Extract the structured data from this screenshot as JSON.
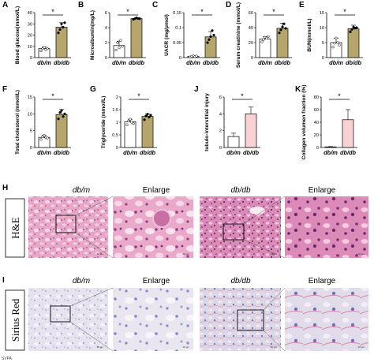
{
  "chart_data": [
    {
      "type": "bar",
      "panel": "A",
      "ylabel": "Blood glucose(mmol/L)",
      "categories": [
        "db/m",
        "db/db"
      ],
      "values": [
        8,
        27
      ],
      "errors": [
        1.5,
        4
      ],
      "ylim": [
        0,
        40
      ],
      "yticks": [
        0,
        10,
        20,
        30,
        40
      ],
      "significance": "*",
      "points": [
        [
          6,
          8,
          9,
          7,
          8
        ],
        [
          22,
          25,
          30,
          27,
          31
        ]
      ]
    },
    {
      "type": "bar",
      "panel": "B",
      "ylabel": "Microalbumin(mg/L)",
      "categories": [
        "db/m",
        "db/db"
      ],
      "values": [
        1.6,
        5.2
      ],
      "errors": [
        0.6,
        0.1
      ],
      "ylim": [
        0,
        6
      ],
      "yticks": [
        0,
        2,
        4,
        6
      ],
      "significance": "*",
      "points": [
        [
          1,
          2,
          1.3,
          2.3,
          1.5
        ],
        [
          5.1,
          5.2,
          5.3,
          5.2,
          5.2
        ]
      ]
    },
    {
      "type": "bar",
      "panel": "C",
      "ylabel": "UACR (mg/μmol)",
      "categories": [
        "db/m",
        "db/db"
      ],
      "values": [
        0.004,
        0.069
      ],
      "errors": [
        0.002,
        0.018
      ],
      "ylim": [
        0,
        0.15
      ],
      "yticks": [
        0,
        0.05,
        0.1,
        0.15
      ],
      "significance": "*",
      "points": [
        [
          0.002,
          0.004,
          0.006,
          0.003,
          0.005
        ],
        [
          0.05,
          0.06,
          0.07,
          0.09,
          0.075
        ]
      ]
    },
    {
      "type": "bar",
      "panel": "D",
      "ylabel": "Serum creatinine (mmol/L)",
      "categories": [
        "db/m",
        "db/db"
      ],
      "values": [
        25,
        39
      ],
      "errors": [
        3,
        7
      ],
      "ylim": [
        0,
        60
      ],
      "yticks": [
        0,
        20,
        40,
        60
      ],
      "significance": "*",
      "points": [
        [
          21,
          24,
          27,
          26,
          28
        ],
        [
          33,
          37,
          41,
          45,
          39
        ]
      ]
    },
    {
      "type": "bar",
      "panel": "E",
      "ylabel": "BUN(mmol/L)",
      "categories": [
        "db/m",
        "db/db"
      ],
      "values": [
        5,
        9.6
      ],
      "errors": [
        1.5,
        1.2
      ],
      "ylim": [
        0,
        15
      ],
      "yticks": [
        0,
        5,
        10,
        15
      ],
      "significance": "*",
      "points": [
        [
          3.5,
          4.8,
          6.5,
          5,
          4.2
        ],
        [
          8.6,
          9.4,
          10.2,
          9.8,
          10
        ]
      ]
    },
    {
      "type": "bar",
      "panel": "F",
      "ylabel": "Total cholesterol (mmol/L)",
      "categories": [
        "db/m",
        "db/db"
      ],
      "values": [
        3,
        9.8
      ],
      "errors": [
        0.6,
        1.5
      ],
      "ylim": [
        0,
        15
      ],
      "yticks": [
        0,
        5,
        10,
        15
      ],
      "significance": "*",
      "points": [
        [
          2.4,
          3.2,
          3.6,
          2.9,
          2.8
        ],
        [
          8.5,
          10.4,
          11,
          9.2,
          10
        ]
      ]
    },
    {
      "type": "bar",
      "panel": "G",
      "ylabel": "Triglyceride (mmol/L)",
      "categories": [
        "db/m",
        "db/db"
      ],
      "values": [
        1.02,
        1.23
      ],
      "errors": [
        0.1,
        0.1
      ],
      "ylim": [
        0,
        2
      ],
      "yticks": [
        0,
        0.5,
        1,
        1.5,
        2
      ],
      "significance": "*",
      "points": [
        [
          0.9,
          1.05,
          1.12,
          1.0,
          0.95
        ],
        [
          1.1,
          1.25,
          1.32,
          1.2,
          1.28
        ]
      ]
    },
    {
      "type": "bar",
      "panel": "J",
      "ylabel": "tubulo-interstitial injury",
      "categories": [
        "db/m",
        "db/db"
      ],
      "values": [
        1.3,
        4.0
      ],
      "errors": [
        0.4,
        0.8
      ],
      "ylim": [
        0,
        6
      ],
      "yticks": [
        0,
        2,
        4,
        6
      ],
      "significance": "*",
      "points": []
    },
    {
      "type": "bar",
      "panel": "K",
      "ylabel": "Collagen volumen fraction (%)",
      "categories": [
        "db/m",
        "db/db"
      ],
      "values": [
        1,
        44
      ],
      "errors": [
        0.5,
        16
      ],
      "ylim": [
        0,
        80
      ],
      "yticks": [
        0,
        20,
        40,
        60,
        80
      ],
      "significance": "*",
      "points": []
    }
  ],
  "histology": {
    "panel_h": "H",
    "panel_i": "I",
    "col_titles": [
      "db/m",
      "Enlarge",
      "db/db",
      "Enlarge"
    ],
    "row_labels": [
      "H&E",
      "Sirius Red"
    ],
    "scale_labels": [
      "50 µm",
      "20 µm"
    ]
  },
  "colors": {
    "dbm_bar": "#ffffff",
    "dbdb_bar": "#b7a66c",
    "j_dbm": "#ffffff",
    "j_dbdb": "#f9d2d4",
    "he_bg": "#e7a1c3",
    "he_dark": "#c66d9f",
    "sr_bg": "#e7e4ef",
    "sr_dark": "#9ea0cf"
  },
  "footer": "SVPA"
}
